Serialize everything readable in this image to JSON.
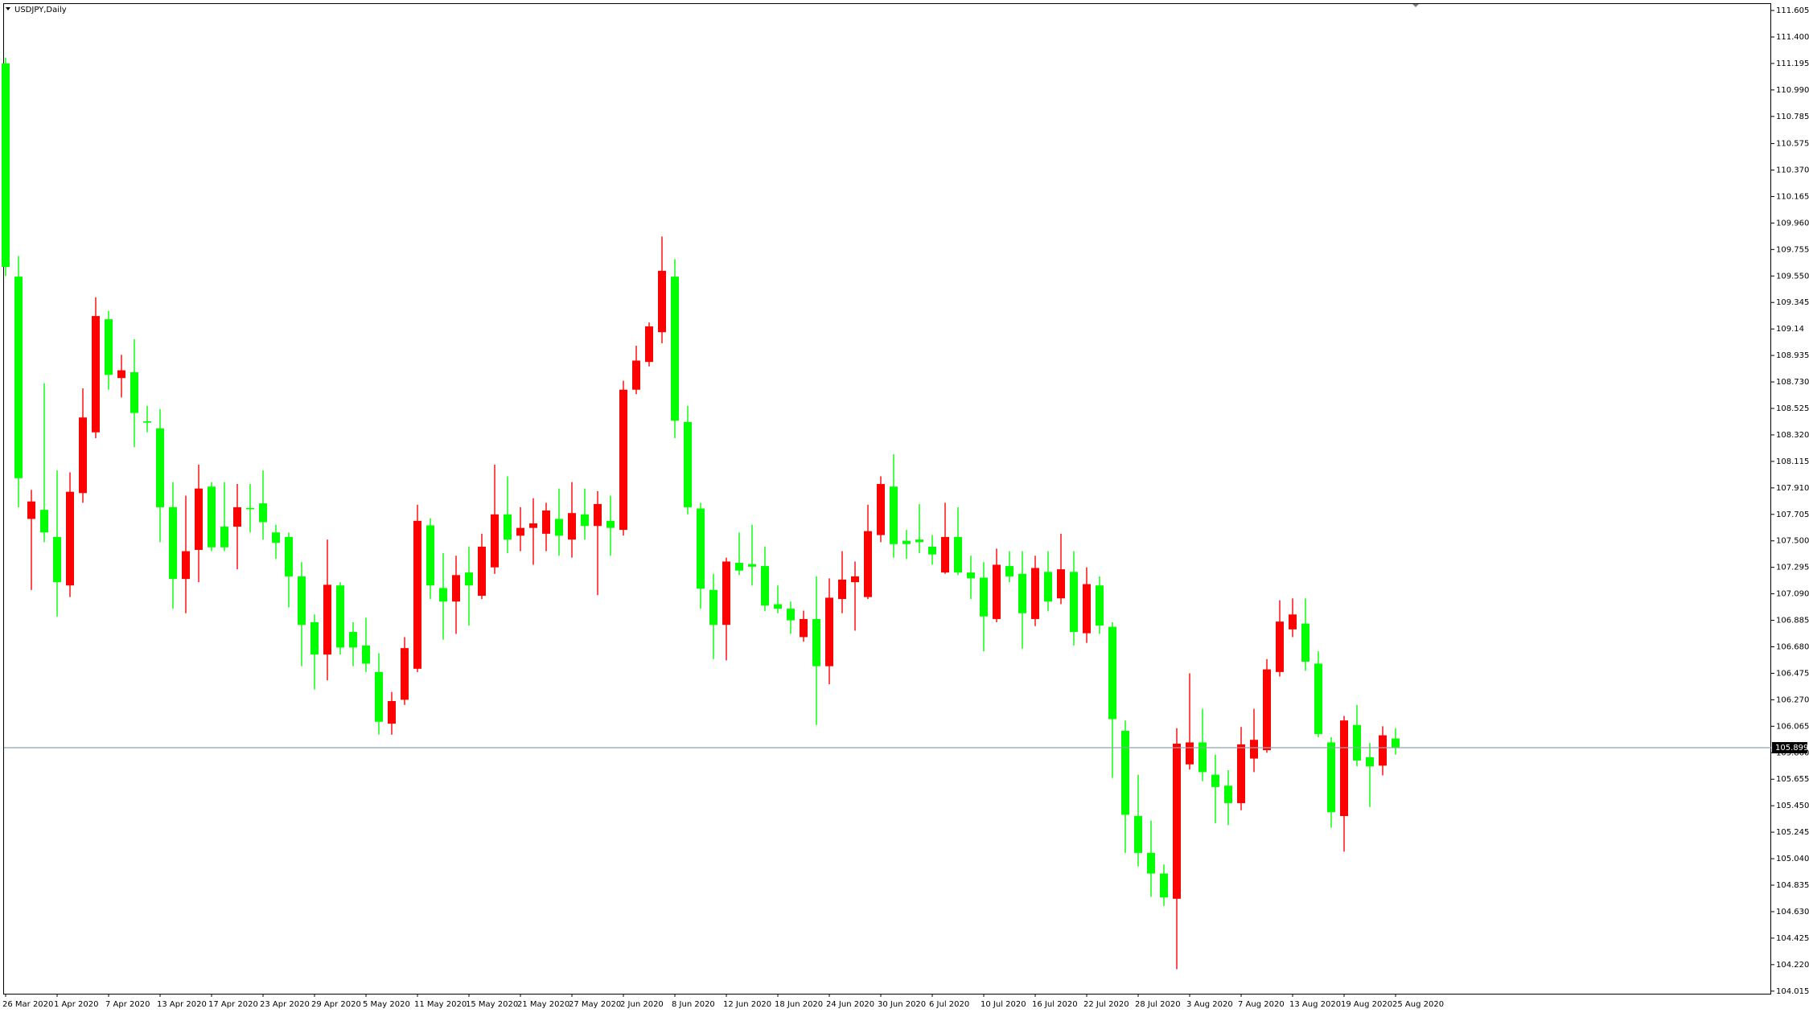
{
  "chart_data": {
    "type": "candlestick",
    "title": "USDJPY,Daily",
    "categories": [
      "26 Mar 2020",
      null,
      null,
      null,
      "1 Apr 2020",
      null,
      null,
      null,
      "7 Apr 2020",
      null,
      null,
      null,
      "13 Apr 2020",
      null,
      null,
      null,
      "17 Apr 2020",
      null,
      null,
      null,
      "23 Apr 2020",
      null,
      null,
      null,
      "29 Apr 2020",
      null,
      null,
      null,
      "5 May 2020",
      null,
      null,
      null,
      "11 May 2020",
      null,
      null,
      null,
      "15 May 2020",
      null,
      null,
      null,
      "21 May 2020",
      null,
      null,
      null,
      "27 May 2020",
      null,
      null,
      null,
      "2 Jun 2020",
      null,
      null,
      null,
      "8 Jun 2020",
      null,
      null,
      null,
      "12 Jun 2020",
      null,
      null,
      null,
      "18 Jun 2020",
      null,
      null,
      null,
      "24 Jun 2020",
      null,
      null,
      null,
      "30 Jun 2020",
      null,
      null,
      null,
      "6 Jul 2020",
      null,
      null,
      null,
      "10 Jul 2020",
      null,
      null,
      null,
      "16 Jul 2020",
      null,
      null,
      null,
      "22 Jul 2020",
      null,
      null,
      null,
      "28 Jul 2020",
      null,
      null,
      null,
      "3 Aug 2020",
      null,
      null,
      null,
      "7 Aug 2020",
      null,
      null,
      null,
      "13 Aug 2020",
      null,
      null,
      null,
      "19 Aug 2020",
      null,
      null,
      null,
      "25 Aug 2020"
    ],
    "open": [
      111.195,
      109.545,
      107.67,
      107.74,
      107.53,
      107.155,
      107.87,
      108.34,
      109.215,
      108.76,
      108.805,
      108.425,
      108.37,
      107.76,
      107.205,
      107.43,
      107.92,
      107.61,
      107.61,
      107.755,
      107.79,
      107.565,
      107.53,
      107.225,
      106.87,
      106.62,
      107.155,
      106.795,
      106.69,
      106.485,
      106.085,
      106.27,
      106.51,
      107.62,
      107.135,
      107.03,
      107.255,
      107.075,
      107.295,
      107.705,
      107.54,
      107.6,
      107.555,
      107.67,
      107.51,
      107.705,
      107.615,
      107.655,
      107.585,
      108.67,
      108.885,
      109.115,
      109.545,
      108.42,
      107.75,
      107.12,
      106.85,
      107.33,
      107.32,
      107.305,
      107.01,
      106.975,
      106.755,
      106.895,
      106.53,
      107.05,
      107.18,
      107.065,
      107.545,
      107.92,
      107.5,
      107.51,
      107.455,
      107.255,
      107.53,
      107.255,
      107.215,
      106.895,
      107.305,
      107.245,
      106.895,
      107.26,
      107.055,
      107.26,
      106.785,
      107.155,
      106.835,
      106.03,
      105.37,
      105.085,
      104.925,
      104.73,
      105.77,
      105.94,
      105.69,
      105.605,
      105.47,
      105.815,
      105.88,
      106.485,
      106.815,
      106.86,
      106.55,
      105.94,
      105.37,
      106.075,
      105.825,
      105.76,
      105.97
    ],
    "high": [
      111.24,
      109.705,
      107.895,
      108.72,
      108.045,
      108.03,
      108.68,
      109.385,
      109.28,
      108.94,
      109.06,
      108.545,
      108.52,
      107.955,
      107.85,
      108.09,
      107.955,
      107.955,
      107.94,
      107.94,
      108.045,
      107.625,
      107.565,
      107.335,
      106.93,
      107.51,
      107.18,
      106.87,
      106.905,
      106.63,
      106.33,
      106.755,
      107.78,
      107.675,
      107.405,
      107.385,
      107.455,
      107.555,
      108.09,
      108.0,
      107.76,
      107.83,
      107.795,
      107.905,
      107.955,
      107.905,
      107.885,
      107.85,
      108.74,
      109.01,
      109.19,
      109.855,
      109.68,
      108.545,
      107.795,
      107.245,
      107.37,
      107.565,
      107.625,
      107.455,
      107.155,
      107.03,
      106.96,
      107.225,
      107.21,
      107.42,
      107.34,
      107.78,
      108.0,
      108.17,
      107.585,
      107.785,
      107.545,
      107.795,
      107.76,
      107.385,
      107.335,
      107.44,
      107.42,
      107.42,
      107.385,
      107.42,
      107.555,
      107.42,
      107.295,
      107.225,
      106.87,
      106.11,
      105.69,
      105.335,
      104.995,
      106.05,
      106.475,
      106.2,
      105.845,
      105.725,
      106.06,
      106.2,
      106.585,
      107.04,
      107.055,
      107.055,
      106.645,
      105.98,
      106.145,
      106.23,
      105.935,
      106.065,
      106.05
    ],
    "low": [
      109.55,
      107.76,
      107.12,
      107.49,
      106.915,
      107.065,
      107.795,
      108.295,
      108.67,
      108.61,
      108.225,
      108.34,
      107.49,
      106.975,
      106.94,
      107.18,
      107.42,
      107.42,
      107.28,
      107.565,
      107.51,
      107.36,
      106.985,
      106.53,
      106.35,
      106.42,
      106.62,
      106.53,
      106.485,
      106.0,
      106.0,
      106.23,
      106.485,
      107.05,
      106.735,
      106.78,
      106.845,
      107.05,
      107.245,
      107.405,
      107.42,
      107.315,
      107.42,
      107.385,
      107.37,
      107.51,
      107.08,
      107.385,
      107.54,
      108.635,
      108.85,
      109.03,
      108.295,
      107.705,
      106.975,
      106.585,
      106.575,
      107.235,
      107.155,
      106.955,
      106.94,
      106.78,
      106.72,
      106.075,
      106.39,
      106.94,
      106.805,
      107.05,
      107.49,
      107.37,
      107.36,
      107.405,
      107.315,
      107.245,
      107.235,
      107.05,
      106.645,
      106.87,
      107.18,
      106.665,
      106.84,
      106.955,
      107.01,
      106.69,
      106.71,
      106.78,
      105.665,
      105.085,
      104.98,
      104.745,
      104.675,
      104.185,
      105.73,
      105.64,
      105.315,
      105.3,
      105.415,
      105.71,
      105.86,
      106.45,
      106.755,
      106.495,
      105.98,
      105.28,
      105.095,
      105.755,
      105.44,
      105.685,
      105.845
    ],
    "close": [
      109.62,
      107.985,
      107.805,
      107.565,
      107.18,
      107.88,
      108.455,
      109.24,
      108.785,
      108.82,
      108.49,
      108.415,
      107.76,
      107.205,
      107.42,
      107.905,
      107.45,
      107.45,
      107.76,
      107.745,
      107.645,
      107.485,
      107.225,
      106.85,
      106.62,
      107.16,
      106.675,
      106.675,
      106.55,
      106.1,
      106.26,
      106.67,
      107.655,
      107.155,
      107.03,
      107.235,
      107.155,
      107.455,
      107.705,
      107.51,
      107.6,
      107.635,
      107.735,
      107.54,
      107.715,
      107.615,
      107.785,
      107.6,
      108.67,
      108.895,
      109.16,
      109.59,
      108.43,
      107.76,
      107.13,
      106.85,
      107.34,
      107.27,
      107.3,
      107.0,
      106.975,
      106.885,
      106.895,
      106.53,
      107.06,
      107.2,
      107.225,
      107.575,
      107.94,
      107.475,
      107.475,
      107.49,
      107.395,
      107.53,
      107.255,
      107.21,
      106.915,
      107.315,
      107.225,
      106.94,
      107.29,
      107.03,
      107.28,
      106.795,
      107.165,
      106.845,
      106.12,
      105.38,
      105.085,
      104.925,
      104.74,
      105.93,
      105.94,
      105.71,
      105.595,
      105.47,
      105.925,
      105.96,
      106.505,
      106.875,
      106.93,
      106.565,
      106.005,
      105.4,
      106.11,
      105.8,
      105.755,
      105.995,
      105.899
    ],
    "up_color": "#ff0000",
    "down_color": "#00ff00",
    "price_line_color": "#8fa3b0",
    "ylim": [
      103.995,
      111.655
    ],
    "yticks": [
      111.605,
      {
        "value": 111.4,
        "label": "111.400"
      },
      111.195,
      {
        "value": 110.99,
        "label": "110.990"
      },
      110.785,
      110.575,
      {
        "value": 110.37,
        "label": "110.370"
      },
      110.165,
      {
        "value": 109.96,
        "label": "109.960"
      },
      109.755,
      {
        "value": 109.55,
        "label": "109.550"
      },
      109.345,
      109.14,
      108.935,
      {
        "value": 108.73,
        "label": "108.730"
      },
      108.525,
      {
        "value": 108.32,
        "label": "108.320"
      },
      108.115,
      {
        "value": 107.91,
        "label": "107.910"
      },
      107.705,
      {
        "value": 107.5,
        "label": "107.500"
      },
      107.295,
      {
        "value": 107.09,
        "label": "107.090"
      },
      106.885,
      {
        "value": 106.68,
        "label": "106.680"
      },
      106.475,
      {
        "value": 106.27,
        "label": "106.270"
      },
      106.065,
      {
        "value": 105.86,
        "label": "105.860"
      },
      105.655,
      {
        "value": 105.45,
        "label": "105.450"
      },
      105.245,
      {
        "value": 105.04,
        "label": "105.040"
      },
      104.835,
      {
        "value": 104.63,
        "label": "104.630"
      },
      104.425,
      {
        "value": 104.22,
        "label": "104.220"
      },
      104.015
    ],
    "grid": false
  }
}
